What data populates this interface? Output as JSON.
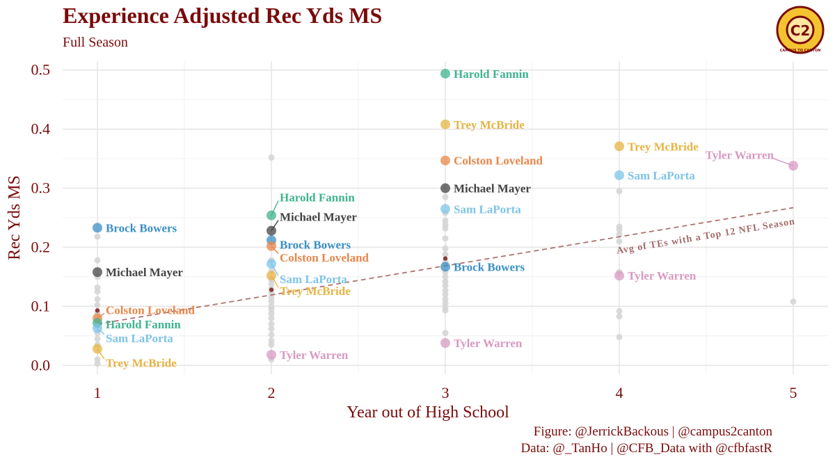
{
  "header": {
    "title": "Experience Adjusted Rec Yds MS",
    "subtitle": "Full Season"
  },
  "caption": {
    "line1": "Figure: @JerrickBackous | @campus2canton",
    "line2": "Data: @_TanHo | @CFB_Data with @cfbfastR"
  },
  "logo": {
    "icon": "campus2canton-logo-icon",
    "text": "C2",
    "ring_text": "CAMPUS TO CANTON"
  },
  "chart_data": {
    "type": "scatter",
    "title": "Experience Adjusted Rec Yds MS",
    "subtitle": "Full Season",
    "xlabel": "Year out of High School",
    "ylabel": "Rec Yds MS",
    "xlim": [
      0.8,
      5.2
    ],
    "ylim": [
      -0.015,
      0.515
    ],
    "xticks": [
      1,
      2,
      3,
      4,
      5
    ],
    "yticks": [
      0.0,
      0.1,
      0.2,
      0.3,
      0.4,
      0.5
    ],
    "ytick_labels": [
      "0.0",
      "0.1",
      "0.2",
      "0.3",
      "0.4",
      "0.5"
    ],
    "grid": true,
    "colors": {
      "Brock Bowers": "#3a8fc4",
      "Michael Mayer": "#444444",
      "Colston Loveland": "#e8874a",
      "Harold Fannin": "#3fb38f",
      "Sam LaPorta": "#7ec4e8",
      "Trey McBride": "#e6b443",
      "Tyler Warren": "#d89ac0",
      "background_points": "#d3d3d3",
      "trend": "#b07070",
      "text": "#7a0a0a"
    },
    "players": [
      {
        "name": "Brock Bowers",
        "points": [
          [
            1,
            0.233
          ],
          [
            2,
            0.212
          ],
          [
            3,
            0.167
          ]
        ]
      },
      {
        "name": "Michael Mayer",
        "points": [
          [
            1,
            0.158
          ],
          [
            2,
            0.228
          ],
          [
            3,
            0.3
          ]
        ]
      },
      {
        "name": "Colston Loveland",
        "points": [
          [
            1,
            0.08
          ],
          [
            2,
            0.202
          ],
          [
            3,
            0.347
          ]
        ]
      },
      {
        "name": "Harold Fannin",
        "points": [
          [
            1,
            0.072
          ],
          [
            2,
            0.254
          ],
          [
            3,
            0.494
          ]
        ]
      },
      {
        "name": "Sam LaPorta",
        "points": [
          [
            1,
            0.063
          ],
          [
            2,
            0.172
          ],
          [
            3,
            0.265
          ],
          [
            4,
            0.322
          ]
        ]
      },
      {
        "name": "Trey McBride",
        "points": [
          [
            1,
            0.028
          ],
          [
            2,
            0.152
          ],
          [
            3,
            0.408
          ],
          [
            4,
            0.371
          ]
        ]
      },
      {
        "name": "Tyler Warren",
        "points": [
          [
            2,
            0.018
          ],
          [
            3,
            0.038
          ],
          [
            4,
            0.152
          ],
          [
            5,
            0.338
          ]
        ]
      }
    ],
    "labels": [
      {
        "name": "Brock Bowers",
        "text": "Brock Bowers",
        "x": 1,
        "y": 0.233
      },
      {
        "name": "Michael Mayer",
        "text": "Michael Mayer",
        "x": 1,
        "y": 0.158
      },
      {
        "name": "Colston Loveland",
        "text": "Colston Loveland",
        "x": 1,
        "y": 0.08
      },
      {
        "name": "Harold Fannin",
        "text": "Harold Fannin",
        "x": 1,
        "y": 0.072
      },
      {
        "name": "Sam LaPorta",
        "text": "Sam LaPorta",
        "x": 1,
        "y": 0.063
      },
      {
        "name": "Trey McBride",
        "text": "Trey McBride",
        "x": 1,
        "y": 0.028
      },
      {
        "name": "Harold Fannin",
        "text": "Harold Fannin",
        "x": 2,
        "y": 0.254
      },
      {
        "name": "Michael Mayer",
        "text": "Michael Mayer",
        "x": 2,
        "y": 0.228
      },
      {
        "name": "Brock Bowers",
        "text": "Brock Bowers",
        "x": 2,
        "y": 0.212
      },
      {
        "name": "Colston Loveland",
        "text": "Colston Loveland",
        "x": 2,
        "y": 0.202
      },
      {
        "name": "Sam LaPorta",
        "text": "Sam LaPorta",
        "x": 2,
        "y": 0.172
      },
      {
        "name": "Trey McBride",
        "text": "Trey McBride",
        "x": 2,
        "y": 0.152
      },
      {
        "name": "Tyler Warren",
        "text": "Tyler Warren",
        "x": 2,
        "y": 0.018
      },
      {
        "name": "Harold Fannin",
        "text": "Harold Fannin",
        "x": 3,
        "y": 0.494
      },
      {
        "name": "Trey McBride",
        "text": "Trey McBride",
        "x": 3,
        "y": 0.408
      },
      {
        "name": "Colston Loveland",
        "text": "Colston Loveland",
        "x": 3,
        "y": 0.347
      },
      {
        "name": "Michael Mayer",
        "text": "Michael Mayer",
        "x": 3,
        "y": 0.3
      },
      {
        "name": "Sam LaPorta",
        "text": "Sam LaPorta",
        "x": 3,
        "y": 0.265
      },
      {
        "name": "Brock Bowers",
        "text": "Brock Bowers",
        "x": 3,
        "y": 0.167
      },
      {
        "name": "Tyler Warren",
        "text": "Tyler Warren",
        "x": 3,
        "y": 0.038
      },
      {
        "name": "Trey McBride",
        "text": "Trey McBride",
        "x": 4,
        "y": 0.371
      },
      {
        "name": "Sam LaPorta",
        "text": "Sam LaPorta",
        "x": 4,
        "y": 0.322
      },
      {
        "name": "Tyler Warren",
        "text": "Tyler Warren",
        "x": 4,
        "y": 0.152
      },
      {
        "name": "Tyler Warren",
        "text": "Tyler Warren",
        "x": 5,
        "y": 0.338
      }
    ],
    "background_points": [
      [
        1,
        0.218
      ],
      [
        1,
        0.178
      ],
      [
        1,
        0.15
      ],
      [
        1,
        0.132
      ],
      [
        1,
        0.125
      ],
      [
        1,
        0.112
      ],
      [
        1,
        0.102
      ],
      [
        1,
        0.09
      ],
      [
        1,
        0.083
      ],
      [
        1,
        0.068
      ],
      [
        1,
        0.055
      ],
      [
        1,
        0.045
      ],
      [
        1,
        0.035
      ],
      [
        1,
        0.01
      ],
      [
        1,
        0.003
      ],
      [
        2,
        0.352
      ],
      [
        2,
        0.178
      ],
      [
        2,
        0.16
      ],
      [
        2,
        0.145
      ],
      [
        2,
        0.138
      ],
      [
        2,
        0.13
      ],
      [
        2,
        0.122
      ],
      [
        2,
        0.115
      ],
      [
        2,
        0.108
      ],
      [
        2,
        0.1
      ],
      [
        2,
        0.095
      ],
      [
        2,
        0.088
      ],
      [
        2,
        0.08
      ],
      [
        2,
        0.07
      ],
      [
        2,
        0.062
      ],
      [
        2,
        0.052
      ],
      [
        2,
        0.042
      ],
      [
        2,
        0.035
      ],
      [
        2,
        0.01
      ],
      [
        3,
        0.285
      ],
      [
        3,
        0.258
      ],
      [
        3,
        0.245
      ],
      [
        3,
        0.238
      ],
      [
        3,
        0.232
      ],
      [
        3,
        0.215
      ],
      [
        3,
        0.198
      ],
      [
        3,
        0.188
      ],
      [
        3,
        0.175
      ],
      [
        3,
        0.158
      ],
      [
        3,
        0.15
      ],
      [
        3,
        0.142
      ],
      [
        3,
        0.135
      ],
      [
        3,
        0.127
      ],
      [
        3,
        0.12
      ],
      [
        3,
        0.112
      ],
      [
        3,
        0.105
      ],
      [
        3,
        0.098
      ],
      [
        3,
        0.093
      ],
      [
        3,
        0.055
      ],
      [
        4,
        0.295
      ],
      [
        4,
        0.235
      ],
      [
        4,
        0.23
      ],
      [
        4,
        0.222
      ],
      [
        4,
        0.21
      ],
      [
        4,
        0.158
      ],
      [
        4,
        0.092
      ],
      [
        4,
        0.083
      ],
      [
        4,
        0.048
      ],
      [
        5,
        0.108
      ]
    ],
    "averages": [
      [
        1,
        0.093
      ],
      [
        2,
        0.128
      ],
      [
        3,
        0.181
      ]
    ],
    "trend_line": {
      "x": [
        1,
        5
      ],
      "y": [
        0.07,
        0.267
      ],
      "label": "Avg of TEs with a Top 12 NFL Season",
      "style": "dashed"
    }
  }
}
